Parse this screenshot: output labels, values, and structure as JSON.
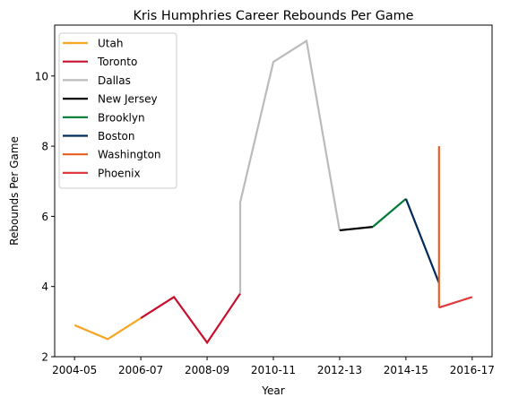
{
  "chart_data": {
    "type": "line",
    "title": "Kris Humphries Career Rebounds Per Game",
    "xlabel": "Year",
    "ylabel": "Rebounds Per Game",
    "x_tick_labels": [
      "2004-05",
      "2006-07",
      "2008-09",
      "2010-11",
      "2012-13",
      "2014-15",
      "2016-17"
    ],
    "y_ticks": [
      2,
      4,
      6,
      8,
      10
    ],
    "ylim": [
      2,
      11.45
    ],
    "grid": false,
    "legend_placement": "top-left",
    "series": [
      {
        "name": "Utah",
        "color": "#f5a623",
        "points": [
          [
            "2004-05",
            2.9
          ],
          [
            "2005-06",
            2.5
          ],
          [
            "2006-07",
            3.1
          ]
        ]
      },
      {
        "name": "Toronto",
        "color": "#c8102e",
        "points": [
          [
            "2006-07",
            3.1
          ],
          [
            "2007-08",
            3.7
          ],
          [
            "2008-09",
            2.4
          ],
          [
            "2009-10",
            3.8
          ]
        ]
      },
      {
        "name": "Dallas",
        "color": "#bbbbbb",
        "points": [
          [
            "2009-10",
            3.8
          ],
          [
            "2009-10",
            6.4
          ],
          [
            "2010-11",
            10.4
          ],
          [
            "2011-12",
            11.0
          ],
          [
            "2012-13",
            5.6
          ]
        ]
      },
      {
        "name": "New Jersey",
        "color": "#000000",
        "points": [
          [
            "2012-13",
            5.6
          ],
          [
            "2013-14",
            5.7
          ]
        ]
      },
      {
        "name": "Brooklyn",
        "color": "#007a33",
        "points": [
          [
            "2013-14",
            5.7
          ],
          [
            "2014-15",
            6.5
          ]
        ]
      },
      {
        "name": "Boston",
        "color": "#002b5c",
        "points": [
          [
            "2014-15",
            6.5
          ],
          [
            "2015-16",
            4.1
          ]
        ]
      },
      {
        "name": "Washington",
        "color": "#e56020",
        "points": [
          [
            "2015-16",
            8.0
          ],
          [
            "2015-16",
            3.4
          ]
        ]
      },
      {
        "name": "Phoenix",
        "color": "#e03a3e",
        "points": [
          [
            "2015-16",
            3.4
          ],
          [
            "2016-17",
            3.7
          ]
        ]
      }
    ]
  }
}
